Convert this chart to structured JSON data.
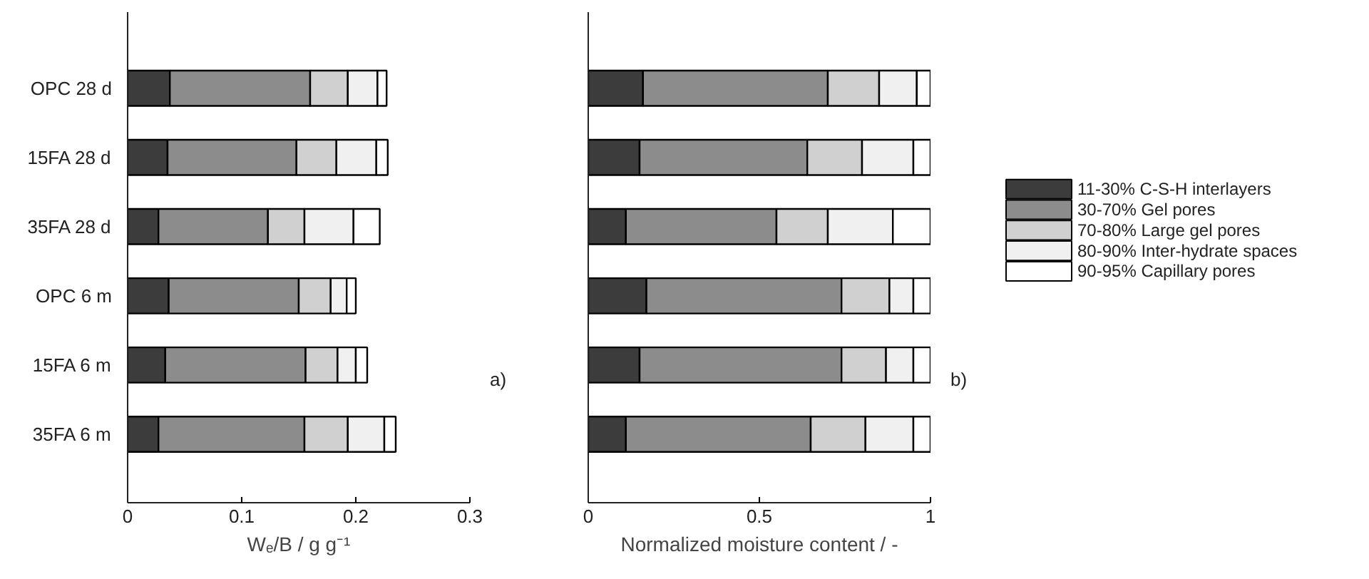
{
  "chart_data": [
    {
      "type": "bar",
      "orientation": "horizontal",
      "stacked": true,
      "xlabel": "Wₑ/B / g g⁻¹",
      "categories": [
        "OPC 28 d",
        "15FA 28 d",
        "35FA 28 d",
        "OPC 6 m",
        "15FA 6 m",
        "35FA 6 m"
      ],
      "xlim": [
        0,
        0.3
      ],
      "xticks": [
        0,
        0.1,
        0.2,
        0.3
      ],
      "grid": false,
      "legend": false,
      "annotations": [
        "a)"
      ],
      "series": [
        {
          "color": "#3c3c3c",
          "values": [
            0.037,
            0.035,
            0.027,
            0.036,
            0.033,
            0.027
          ]
        },
        {
          "color": "#8c8c8c",
          "values": [
            0.123,
            0.113,
            0.096,
            0.114,
            0.123,
            0.128
          ]
        },
        {
          "color": "#d0d0d0",
          "values": [
            0.033,
            0.035,
            0.032,
            0.028,
            0.028,
            0.038
          ]
        },
        {
          "color": "#f0f0f0",
          "values": [
            0.026,
            0.035,
            0.043,
            0.014,
            0.016,
            0.032
          ]
        },
        {
          "color": "#ffffff",
          "values": [
            0.008,
            0.01,
            0.023,
            0.008,
            0.01,
            0.01
          ]
        }
      ]
    },
    {
      "type": "bar",
      "orientation": "horizontal",
      "stacked": true,
      "xlabel": "Normalized moisture content / -",
      "categories": [
        null,
        null,
        null,
        null,
        null,
        null
      ],
      "xlim": [
        0,
        1
      ],
      "xticks": [
        0,
        0.5,
        1
      ],
      "grid": false,
      "legend": "right",
      "tick_labels": "x",
      "annotations": [
        "b)"
      ],
      "series": [
        {
          "name": "11-30%  C-S-H interlayers",
          "color": "#3c3c3c",
          "values": [
            0.16,
            0.15,
            0.11,
            0.17,
            0.15,
            0.11
          ]
        },
        {
          "name": "30-70%  Gel pores",
          "color": "#8c8c8c",
          "values": [
            0.54,
            0.49,
            0.44,
            0.57,
            0.59,
            0.54
          ]
        },
        {
          "name": "70-80%  Large gel pores",
          "color": "#d0d0d0",
          "values": [
            0.15,
            0.16,
            0.15,
            0.14,
            0.13,
            0.16
          ]
        },
        {
          "name": "80-90%  Inter-hydrate spaces",
          "color": "#f0f0f0",
          "values": [
            0.11,
            0.15,
            0.19,
            0.07,
            0.08,
            0.14
          ]
        },
        {
          "name": "90-95%  Capillary pores",
          "color": "#ffffff",
          "values": [
            0.04,
            0.05,
            0.11,
            0.05,
            0.05,
            0.05
          ]
        }
      ]
    }
  ]
}
